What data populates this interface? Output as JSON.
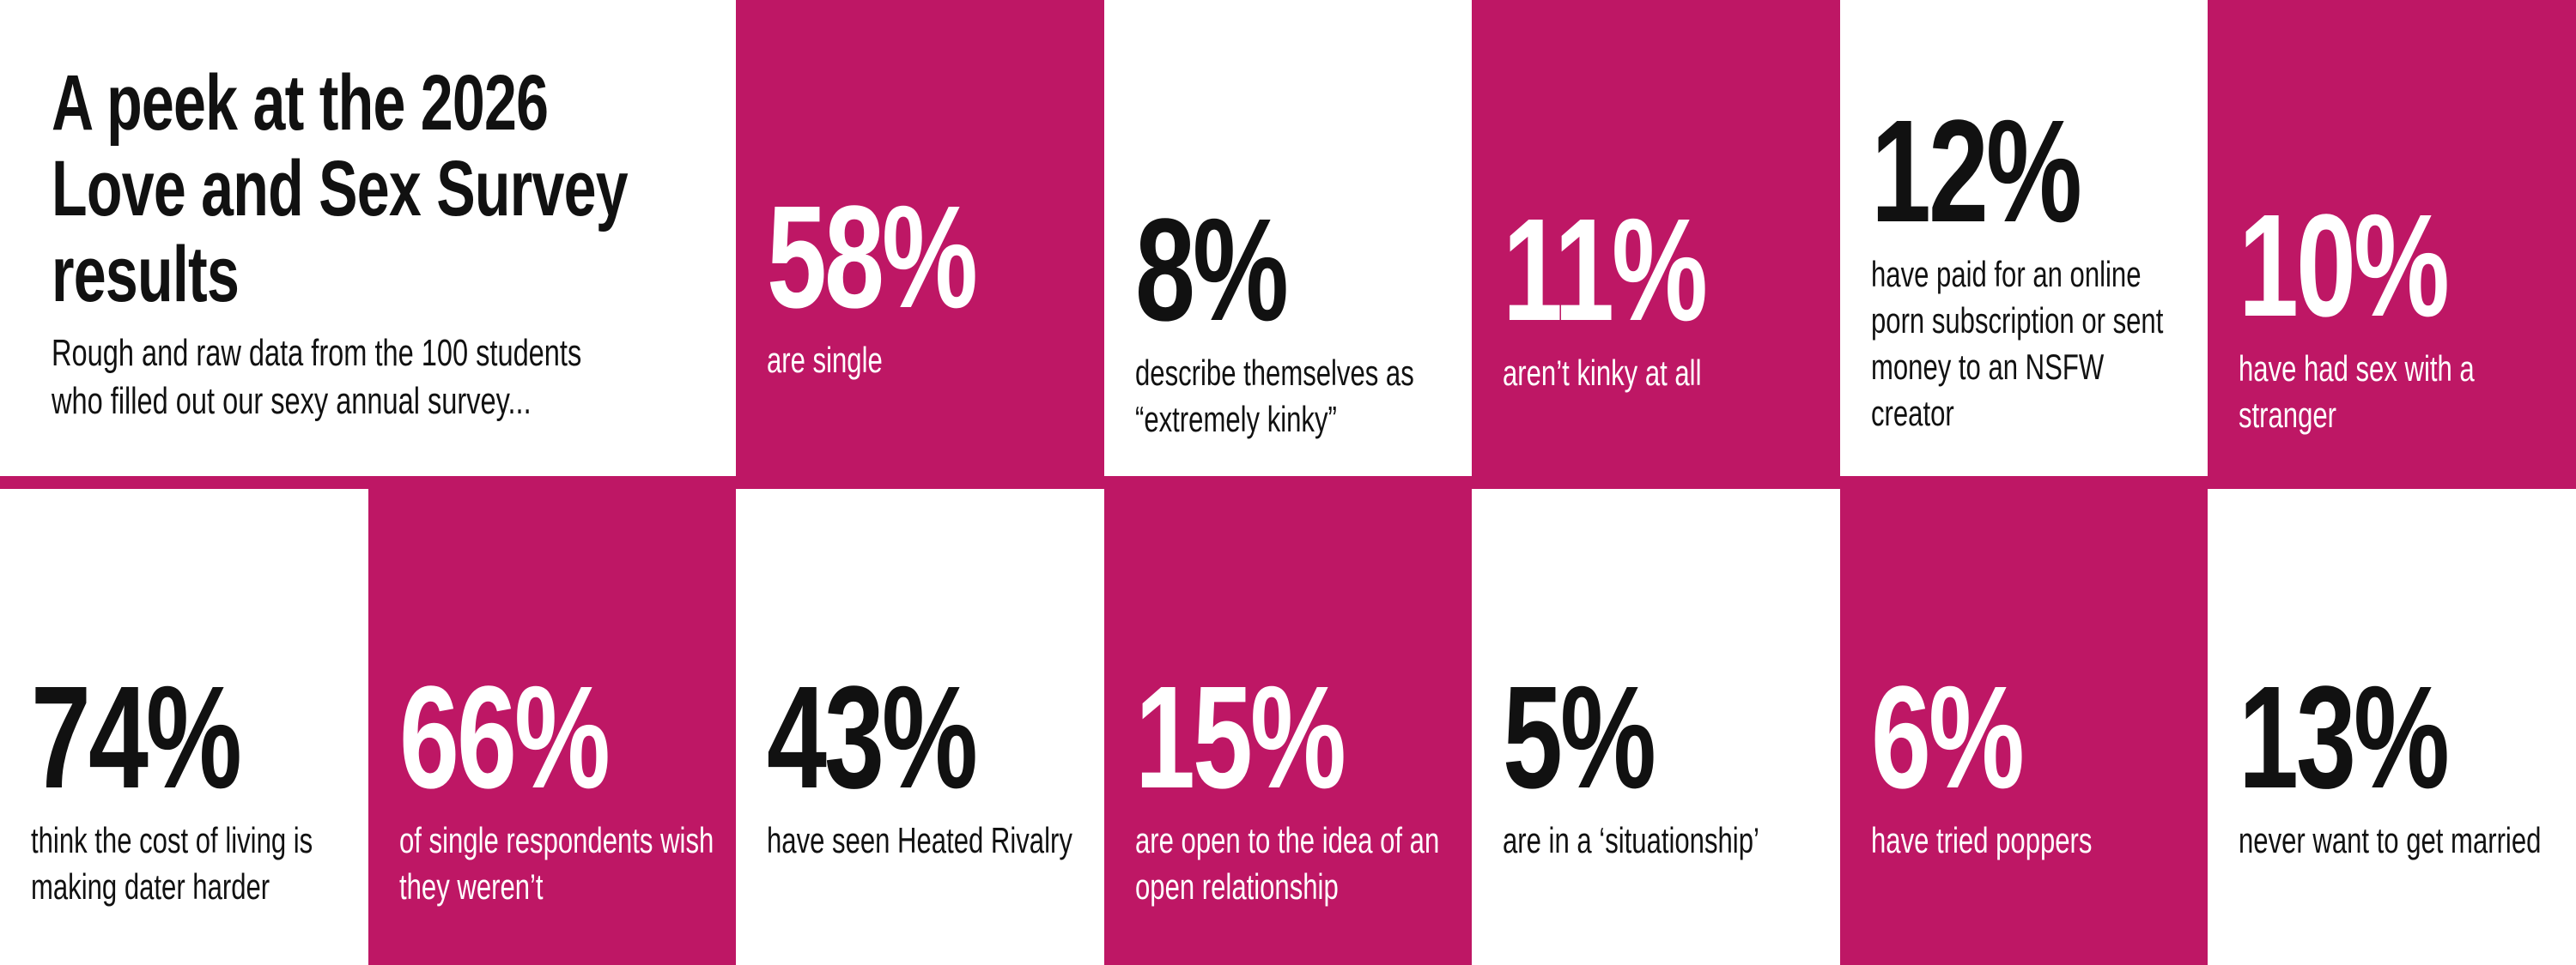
{
  "header": {
    "title": "A peek at the 2026 Love and Sex Survey results",
    "subtitle": "Rough and raw data from the 100 students who filled out our sexy annual survey..."
  },
  "stats": [
    {
      "value": "58%",
      "label": "are single"
    },
    {
      "value": "8%",
      "label": "describe themselves as “extremely kinky”"
    },
    {
      "value": "11%",
      "label": "aren’t kinky at all"
    },
    {
      "value": "12%",
      "label": "have paid for an online porn subscription or sent money to an NSFW creator"
    },
    {
      "value": "10%",
      "label": "have had sex with a stranger"
    },
    {
      "value": "74%",
      "label": "think the cost of living is making dater harder"
    },
    {
      "value": "66%",
      "label": "of single respondents wish they weren’t"
    },
    {
      "value": "43%",
      "label": "have seen Heated Rivalry"
    },
    {
      "value": "15%",
      "label": "are open to the idea of an open relationship"
    },
    {
      "value": "5%",
      "label": "are in a ‘situationship’"
    },
    {
      "value": "6%",
      "label": "have tried poppers"
    },
    {
      "value": "13%",
      "label": "never want to get married"
    }
  ]
}
